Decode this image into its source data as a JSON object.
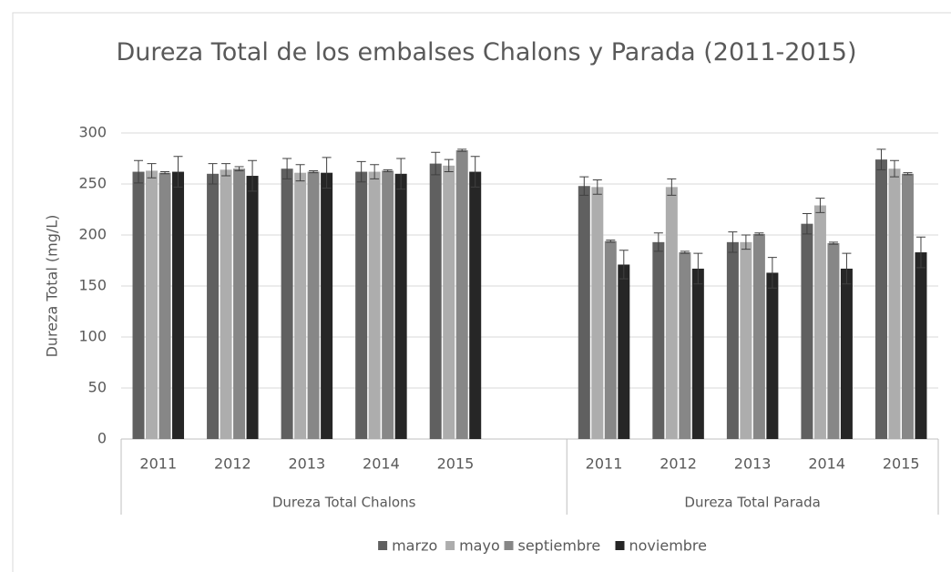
{
  "chart_data": {
    "type": "bar",
    "title": "Dureza Total de los embalses Chalons y Parada (2011-2015)",
    "y_label": "Dureza Total (mg/L)",
    "groups": [
      {
        "name": "Dureza Total Chalons",
        "categories": [
          "2011",
          "2012",
          "2013",
          "2014",
          "2015",
          null
        ]
      },
      {
        "name": "Dureza Total Parada",
        "categories": [
          "2011",
          "2012",
          "2013",
          "2014",
          "2015"
        ]
      }
    ],
    "series": [
      {
        "name": "marzo",
        "color": "#606060",
        "values": [
          262,
          260,
          265,
          262,
          270,
          null,
          248,
          193,
          193,
          211,
          274
        ],
        "errors": [
          11,
          10,
          10,
          10,
          11,
          null,
          9,
          9,
          10,
          10,
          10
        ]
      },
      {
        "name": "mayo",
        "color": "#adadad",
        "values": [
          263,
          264,
          261,
          262,
          268,
          null,
          247,
          247,
          193,
          229,
          265
        ],
        "errors": [
          7,
          6,
          8,
          7,
          6,
          null,
          7,
          8,
          7,
          7,
          8
        ]
      },
      {
        "name": "septiembre",
        "color": "#878787",
        "values": [
          261,
          265,
          262,
          263,
          283,
          null,
          194,
          183,
          201,
          192,
          260
        ],
        "errors": [
          1,
          2,
          1,
          1,
          1,
          null,
          1,
          1,
          1,
          1,
          1
        ]
      },
      {
        "name": "noviembre",
        "color": "#262626",
        "values": [
          262,
          258,
          261,
          260,
          262,
          null,
          171,
          167,
          163,
          167,
          183
        ],
        "errors": [
          15,
          15,
          15,
          15,
          15,
          null,
          14,
          15,
          15,
          15,
          15
        ]
      }
    ],
    "ylim": [
      0,
      300
    ],
    "yticks": [
      0,
      50,
      100,
      150,
      200,
      250,
      300
    ],
    "grid": true,
    "legend": "bottom"
  }
}
